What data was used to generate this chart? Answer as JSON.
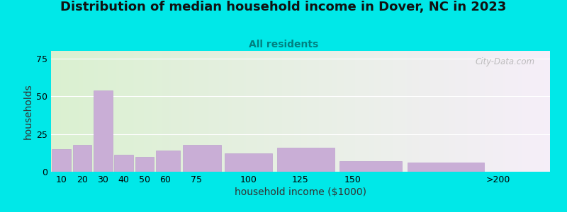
{
  "title": "Distribution of median household income in Dover, NC in 2023",
  "subtitle": "All residents",
  "xlabel": "household income ($1000)",
  "ylabel": "households",
  "bar_left_edges": [
    5,
    15,
    25,
    35,
    45,
    55,
    67.5,
    87.5,
    112.5,
    142.5,
    175
  ],
  "bar_widths": [
    10,
    10,
    10,
    10,
    10,
    12.5,
    20,
    25,
    30,
    32.5,
    40
  ],
  "values": [
    15,
    18,
    54,
    11,
    10,
    14,
    18,
    12,
    16,
    7,
    6
  ],
  "xtick_positions": [
    10,
    20,
    30,
    40,
    50,
    60,
    75,
    100,
    125,
    150,
    220
  ],
  "xtick_labels": [
    "10",
    "20",
    "30",
    "40",
    "50",
    "60",
    "75",
    "100",
    "125",
    "150",
    ">200"
  ],
  "bar_color": "#c9aed6",
  "bar_edge_color": "#b898cc",
  "bg_outer": "#00e8e8",
  "yticks": [
    0,
    25,
    50,
    75
  ],
  "ylim": [
    0,
    80
  ],
  "xlim": [
    5,
    245
  ],
  "title_fontsize": 13,
  "subtitle_fontsize": 10,
  "axis_label_fontsize": 10,
  "tick_fontsize": 9,
  "watermark": "City-Data.com",
  "subtitle_color": "#008080",
  "title_color": "#111111"
}
